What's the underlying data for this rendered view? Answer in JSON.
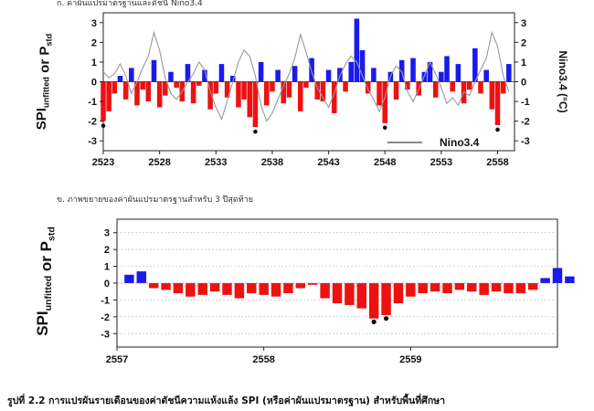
{
  "page": {
    "panel_a_title": "ก.  ค่าผันแปรมาตรฐานและดัชนี Nino3.4",
    "panel_b_title": "ข.  ภาพขยายของค่าผันแปรมาตรฐานสำหรับ 3 ปีสุดท้าย",
    "caption": "รูปที่ 2.2 การแปรผันรายเดือนของค่าดัชนีความแห้งแล้ง SPI (หรือค่าผันแปรมาตรฐาน) สำหรับพื้นที่ศึกษา"
  },
  "colors": {
    "positive": "#1a1aee",
    "negative": "#ee1111",
    "nino": "#999999",
    "axis": "#222222"
  },
  "chart_data": [
    {
      "type": "bar",
      "ylabel_left": "SPI_unfitted or P_std",
      "ylabel_right": "Nino3.4 (°C)",
      "legend": {
        "label": "Nino3.4",
        "placement": "bottom-right"
      },
      "xlim": [
        2523,
        2559.5
      ],
      "ylim": [
        -3.5,
        3.5
      ],
      "xticks": [
        2523,
        2528,
        2533,
        2538,
        2543,
        2548,
        2553,
        2558
      ],
      "yticks": [
        -3,
        -2,
        -1,
        0,
        1,
        2,
        3
      ],
      "right_yticks": [
        -3,
        -2,
        -1,
        0,
        1,
        2,
        3
      ],
      "grid": false,
      "bars_x": [
        2523.0,
        2523.5,
        2524.0,
        2524.5,
        2525.0,
        2525.5,
        2526.0,
        2526.5,
        2527.0,
        2527.5,
        2528.0,
        2528.5,
        2529.0,
        2529.5,
        2530.0,
        2530.5,
        2531.0,
        2531.5,
        2532.0,
        2532.5,
        2533.0,
        2533.5,
        2534.0,
        2534.5,
        2535.0,
        2535.5,
        2536.0,
        2536.5,
        2537.0,
        2537.5,
        2538.0,
        2538.5,
        2539.0,
        2539.5,
        2540.0,
        2540.5,
        2541.0,
        2541.5,
        2542.0,
        2542.5,
        2543.0,
        2543.5,
        2544.0,
        2544.5,
        2545.0,
        2545.5,
        2546.0,
        2546.5,
        2547.0,
        2547.5,
        2548.0,
        2548.5,
        2549.0,
        2549.5,
        2550.0,
        2550.5,
        2551.0,
        2551.5,
        2552.0,
        2552.5,
        2553.0,
        2553.5,
        2554.0,
        2554.5,
        2555.0,
        2555.5,
        2556.0,
        2556.5,
        2557.0,
        2557.5,
        2558.0,
        2558.5,
        2559.0
      ],
      "bars_y": [
        -2.0,
        -1.5,
        -0.6,
        0.3,
        -0.9,
        0.7,
        -1.2,
        -0.4,
        -1.0,
        1.1,
        -1.3,
        -0.7,
        0.5,
        -0.3,
        -1.0,
        0.9,
        -1.1,
        -0.2,
        0.6,
        -1.4,
        -0.6,
        0.9,
        -0.8,
        0.3,
        -1.3,
        -0.9,
        -1.8,
        -2.3,
        1.0,
        -1.2,
        -0.5,
        0.6,
        -1.1,
        -0.8,
        0.8,
        -1.5,
        -0.3,
        1.2,
        -0.9,
        -1.0,
        0.6,
        -1.6,
        0.7,
        -0.5,
        1.0,
        3.2,
        1.6,
        -0.6,
        0.7,
        -1.2,
        -2.1,
        0.5,
        -0.9,
        1.1,
        -0.4,
        1.2,
        -0.7,
        0.5,
        1.0,
        -0.8,
        0.5,
        1.3,
        -0.5,
        0.9,
        -1.1,
        -0.4,
        1.7,
        -0.6,
        0.6,
        -1.4,
        -2.2,
        -0.6,
        0.9
      ],
      "nino_x": [
        2523.0,
        2523.5,
        2524.0,
        2524.5,
        2525.0,
        2525.5,
        2526.0,
        2526.5,
        2527.0,
        2527.5,
        2528.0,
        2528.5,
        2529.0,
        2529.5,
        2530.0,
        2530.5,
        2531.0,
        2531.5,
        2532.0,
        2532.5,
        2533.0,
        2533.5,
        2534.0,
        2534.5,
        2535.0,
        2535.5,
        2536.0,
        2536.5,
        2537.0,
        2537.5,
        2538.0,
        2538.5,
        2539.0,
        2539.5,
        2540.0,
        2540.5,
        2541.0,
        2541.5,
        2542.0,
        2542.5,
        2543.0,
        2543.5,
        2544.0,
        2544.5,
        2545.0,
        2545.5,
        2546.0,
        2546.5,
        2547.0,
        2547.5,
        2548.0,
        2548.5,
        2549.0,
        2549.5,
        2550.0,
        2550.5,
        2551.0,
        2551.5,
        2552.0,
        2552.5,
        2553.0,
        2553.5,
        2554.0,
        2554.5,
        2555.0,
        2555.5,
        2556.0,
        2556.5,
        2557.0,
        2557.5,
        2558.0,
        2558.5,
        2559.0
      ],
      "nino_y": [
        0.5,
        0.2,
        0.4,
        0.9,
        0.3,
        -0.6,
        0.0,
        0.7,
        1.3,
        2.5,
        1.6,
        0.2,
        -0.6,
        -0.9,
        -0.5,
        0.0,
        0.4,
        1.0,
        0.6,
        -0.5,
        -1.3,
        -1.9,
        -1.0,
        0.0,
        1.0,
        1.6,
        1.3,
        0.3,
        -1.2,
        -2.0,
        -1.6,
        -0.9,
        -0.2,
        0.4,
        1.2,
        2.4,
        1.5,
        0.5,
        -0.3,
        -0.8,
        -1.3,
        -0.6,
        0.3,
        0.9,
        1.3,
        1.0,
        0.3,
        -0.4,
        -0.9,
        -1.5,
        -0.8,
        0.3,
        0.8,
        0.5,
        -0.5,
        -1.0,
        -0.4,
        0.3,
        1.0,
        0.4,
        -0.3,
        -1.1,
        -0.8,
        -1.2,
        -0.5,
        -0.7,
        0.0,
        0.6,
        1.2,
        2.5,
        1.8,
        0.3,
        -0.5
      ],
      "drought_markers": [
        {
          "x": 2523.0,
          "y": -2.0
        },
        {
          "x": 2536.5,
          "y": -2.3
        },
        {
          "x": 2548.0,
          "y": -2.1
        },
        {
          "x": 2558.0,
          "y": -2.2
        }
      ]
    },
    {
      "type": "bar",
      "ylabel": "SPI_unfitted or P_std",
      "xlim": [
        2557,
        2560
      ],
      "ylim": [
        -3.8,
        3.8
      ],
      "xticks": [
        2557,
        2558,
        2559
      ],
      "yticks": [
        -3,
        -2,
        -1,
        0,
        1,
        2,
        3
      ],
      "grid": "dotted-horizontal",
      "values": [
        0.5,
        0.7,
        -0.3,
        -0.4,
        -0.6,
        -0.8,
        -0.7,
        -0.5,
        -0.7,
        -0.9,
        -0.6,
        -0.7,
        -0.8,
        -0.6,
        -0.3,
        -0.1,
        -0.9,
        -1.2,
        -1.3,
        -1.5,
        -2.1,
        -1.9,
        -1.2,
        -0.8,
        -0.6,
        -0.5,
        -0.6,
        -0.4,
        -0.5,
        -0.7,
        -0.5,
        -0.6,
        -0.6,
        -0.4,
        0.3,
        0.9,
        0.4
      ],
      "drought_markers": [
        {
          "index": 20,
          "y": -2.3
        },
        {
          "index": 21,
          "y": -2.1
        }
      ]
    }
  ]
}
